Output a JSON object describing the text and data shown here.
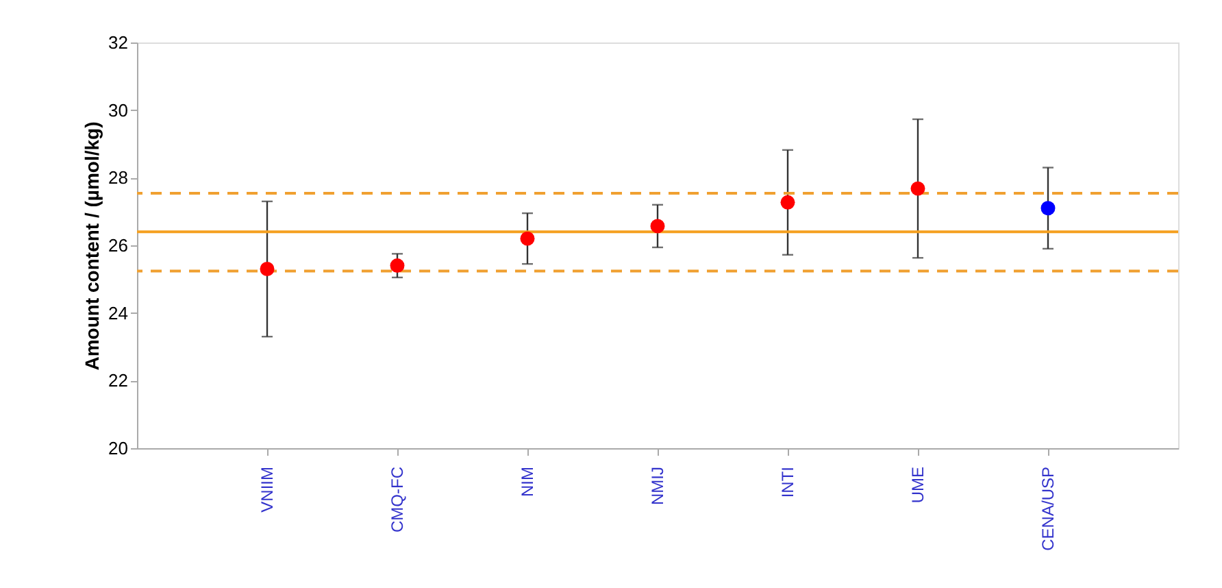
{
  "chart_data": {
    "type": "scatter",
    "ylabel": "Amount content / (µmol/kg)",
    "categories": [
      "VNIIM",
      "CMQ-FC",
      "NIM",
      "NMIJ",
      "INTI",
      "UME",
      "CENA/USP"
    ],
    "values": [
      25.3,
      25.4,
      26.2,
      26.57,
      27.27,
      27.68,
      27.1
    ],
    "errors": [
      2.0,
      0.35,
      0.75,
      0.63,
      1.55,
      2.05,
      1.2
    ],
    "colors": [
      "#ff0000",
      "#ff0000",
      "#ff0000",
      "#ff0000",
      "#ff0000",
      "#ff0000",
      "#0000ff"
    ],
    "marker": "circle",
    "ylim": [
      20,
      32
    ],
    "yticks": [
      20,
      22,
      24,
      26,
      28,
      30,
      32
    ],
    "ref_lines": [
      {
        "axis": "y",
        "value": 26.4,
        "color": "#f5a020",
        "line_style": "solid"
      },
      {
        "axis": "y",
        "value": 27.54,
        "color": "#f0a030",
        "line_style": "dashed"
      },
      {
        "axis": "y",
        "value": 25.24,
        "color": "#f0a030",
        "line_style": "dashed"
      }
    ],
    "grid": false
  }
}
